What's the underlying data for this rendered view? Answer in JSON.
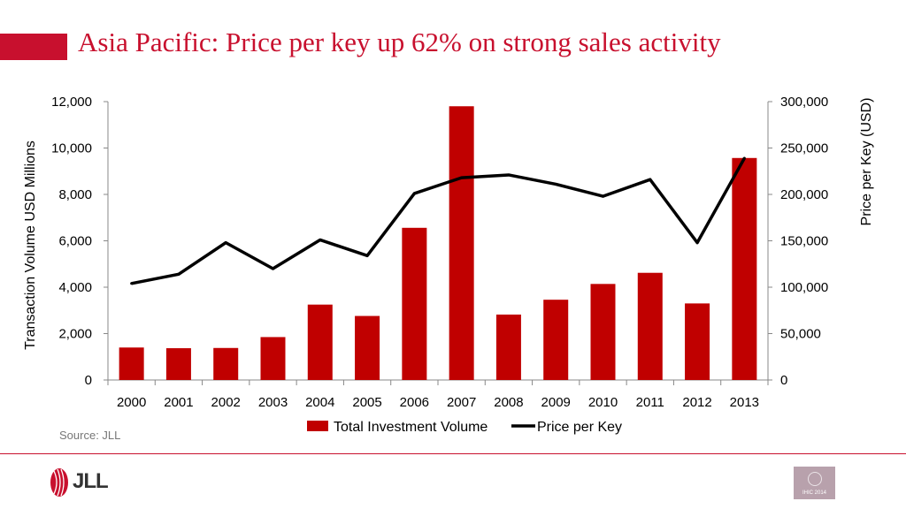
{
  "header": {
    "title": "Asia Pacific: Price per key up 62% on strong sales activity"
  },
  "footer": {
    "source": "Source: JLL",
    "logo_text": "JLL",
    "badge_text": "IHIC 2014"
  },
  "colors": {
    "accent": "#c8102e",
    "bar": "#c00000",
    "line": "#000000"
  },
  "chart_data": {
    "type": "bar",
    "categories": [
      "2000",
      "2001",
      "2002",
      "2003",
      "2004",
      "2005",
      "2006",
      "2007",
      "2008",
      "2009",
      "2010",
      "2011",
      "2012",
      "2013"
    ],
    "series": [
      {
        "name": "Total Investment Volume",
        "type": "bar",
        "axis": "left",
        "values": [
          1400,
          1370,
          1380,
          1850,
          3250,
          2760,
          6560,
          11800,
          2820,
          3460,
          4140,
          4620,
          3300,
          9570
        ]
      },
      {
        "name": "Price per Key",
        "type": "line",
        "axis": "right",
        "values": [
          104000,
          114000,
          148000,
          120000,
          151000,
          134000,
          201000,
          218000,
          221000,
          211000,
          198000,
          216000,
          148000,
          239000
        ]
      }
    ],
    "ylabel": "Transaction Volume USD Millions",
    "y2label": "Price per Key (USD)",
    "ylim": [
      0,
      12000
    ],
    "y2lim": [
      0,
      300000
    ],
    "yticks": [
      "0",
      "2,000",
      "4,000",
      "6,000",
      "8,000",
      "10,000",
      "12,000"
    ],
    "y2ticks": [
      "0",
      "50,000",
      "100,000",
      "150,000",
      "200,000",
      "250,000",
      "300,000"
    ],
    "grid": false,
    "legend": "bottom"
  }
}
